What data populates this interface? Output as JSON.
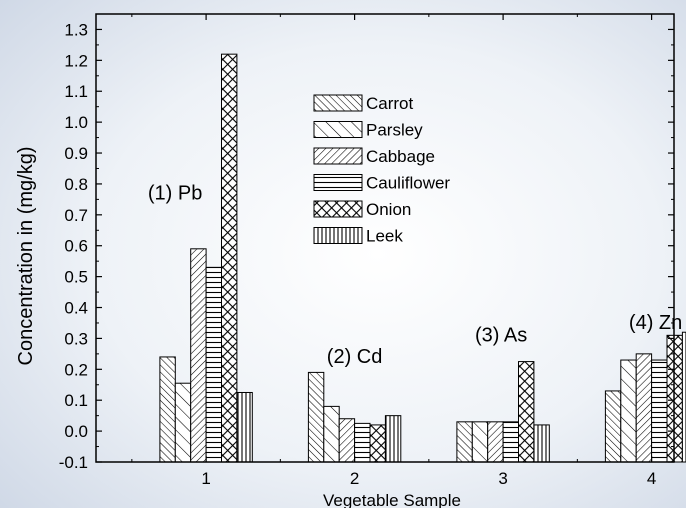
{
  "chart_data": {
    "type": "bar",
    "xlabel": "Vegetable Sample",
    "ylabel": "Concentration in (mg/kg)",
    "categories": [
      "1",
      "2",
      "3",
      "4"
    ],
    "ylim": [
      -0.1,
      1.35
    ],
    "yticks": [
      "-0.1",
      "0.0",
      "0.1",
      "0.2",
      "0.3",
      "0.4",
      "0.5",
      "0.6",
      "0.7",
      "0.8",
      "0.9",
      "1.0",
      "1.1",
      "1.2",
      "1.3"
    ],
    "grid": false,
    "legend_position": "top-center",
    "series": [
      {
        "name": "Carrot",
        "pattern": "diag-dense",
        "values": [
          0.24,
          0.19,
          0.03,
          0.13
        ]
      },
      {
        "name": "Parsley",
        "pattern": "diag-sparse",
        "values": [
          0.155,
          0.08,
          0.03,
          0.23
        ]
      },
      {
        "name": "Cabbage",
        "pattern": "backdiag",
        "values": [
          0.59,
          0.04,
          0.03,
          0.25
        ]
      },
      {
        "name": "Cauliflower",
        "pattern": "horizontal",
        "values": [
          0.53,
          0.025,
          0.03,
          0.23
        ]
      },
      {
        "name": "Onion",
        "pattern": "crosshatch",
        "values": [
          1.22,
          0.02,
          0.225,
          0.31
        ]
      },
      {
        "name": "Leek",
        "pattern": "vertical",
        "values": [
          0.125,
          0.05,
          0.02,
          0.32
        ]
      }
    ],
    "annotations": [
      {
        "text": "(1) Pb",
        "x": "1",
        "y": 0.75
      },
      {
        "text": "(2) Cd",
        "x": "2",
        "y": 0.22
      },
      {
        "text": "(3) As",
        "x": "3",
        "y": 0.29
      },
      {
        "text": "(4) Zn",
        "x": "4",
        "y": 0.33
      }
    ]
  }
}
